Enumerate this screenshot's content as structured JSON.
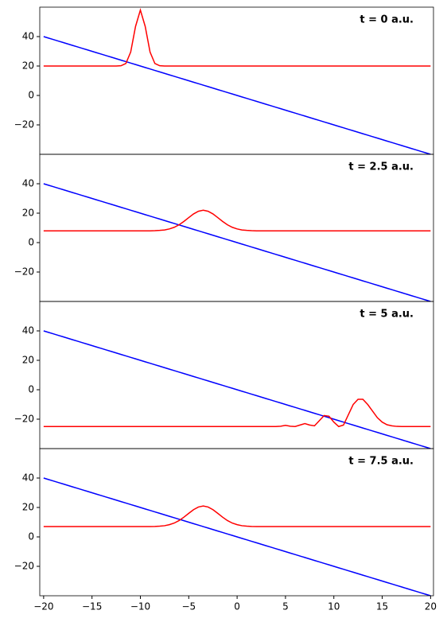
{
  "chart_data": [
    {
      "type": "line",
      "annotation": "t = 0 a.u.",
      "x": [
        -20,
        -19.5,
        -19,
        -18.5,
        -18,
        -17.5,
        -17,
        -16.5,
        -16,
        -15.5,
        -15,
        -14.5,
        -14,
        -13.5,
        -13,
        -12.5,
        -12,
        -11.5,
        -11,
        -10.5,
        -10,
        -9.5,
        -9,
        -8.5,
        -8,
        -7.5,
        -7,
        -6.5,
        -6,
        -5.5,
        -5,
        -4.5,
        -4,
        -3.5,
        -3,
        -2.5,
        -2,
        -1.5,
        -1,
        -0.5,
        0,
        0.5,
        1,
        1.5,
        2,
        2.5,
        3,
        3.5,
        4,
        4.5,
        5,
        5.5,
        6,
        6.5,
        7,
        7.5,
        8,
        8.5,
        9,
        9.5,
        10,
        10.5,
        11,
        11.5,
        12,
        12.5,
        13,
        13.5,
        14,
        14.5,
        15,
        15.5,
        16,
        16.5,
        17,
        17.5,
        18,
        18.5,
        19,
        19.5,
        20
      ],
      "series": [
        {
          "color": "#0000ff",
          "values": [
            40,
            39,
            38,
            37,
            36,
            35,
            34,
            33,
            32,
            31,
            30,
            29,
            28,
            27,
            26,
            25,
            24,
            23,
            22,
            21,
            20,
            19,
            18,
            17,
            16,
            15,
            14,
            13,
            12,
            11,
            10,
            9,
            8,
            7,
            6,
            5,
            4,
            3,
            2,
            1,
            0,
            -1,
            -2,
            -3,
            -4,
            -5,
            -6,
            -7,
            -8,
            -9,
            -10,
            -11,
            -12,
            -13,
            -14,
            -15,
            -16,
            -17,
            -18,
            -19,
            -20,
            -21,
            -22,
            -23,
            -24,
            -25,
            -26,
            -27,
            -28,
            -29,
            -30,
            -31,
            -32,
            -33,
            -34,
            -35,
            -36,
            -37,
            -38,
            -39,
            -40
          ]
        },
        {
          "color": "#ff0000",
          "values": [
            20,
            20,
            20,
            20,
            20,
            20,
            20,
            20,
            20,
            20,
            20,
            20,
            20,
            20,
            20,
            20,
            20.2,
            21.7,
            29.5,
            46.9,
            58,
            46.9,
            29.5,
            21.7,
            20.2,
            20,
            20,
            20,
            20,
            20,
            20,
            20,
            20,
            20,
            20,
            20,
            20,
            20,
            20,
            20,
            20,
            20,
            20,
            20,
            20,
            20,
            20,
            20,
            20,
            20,
            20,
            20,
            20,
            20,
            20,
            20,
            20,
            20,
            20,
            20,
            20,
            20,
            20,
            20,
            20,
            20,
            20,
            20,
            20,
            20,
            20,
            20,
            20,
            20,
            20,
            20,
            20,
            20,
            20,
            20,
            20
          ]
        }
      ],
      "xlim": [
        -20.4,
        20.3
      ],
      "ylim": [
        -40,
        60
      ],
      "yticks": [
        {
          "value": -20,
          "label": "−20"
        },
        0,
        20,
        40
      ]
    },
    {
      "type": "line",
      "annotation": "t = 2.5 a.u.",
      "x": [
        -20,
        -19.5,
        -19,
        -18.5,
        -18,
        -17.5,
        -17,
        -16.5,
        -16,
        -15.5,
        -15,
        -14.5,
        -14,
        -13.5,
        -13,
        -12.5,
        -12,
        -11.5,
        -11,
        -10.5,
        -10,
        -9.5,
        -9,
        -8.5,
        -8,
        -7.5,
        -7,
        -6.5,
        -6,
        -5.5,
        -5,
        -4.5,
        -4,
        -3.5,
        -3,
        -2.5,
        -2,
        -1.5,
        -1,
        -0.5,
        0,
        0.5,
        1,
        1.5,
        2,
        2.5,
        3,
        3.5,
        4,
        4.5,
        5,
        5.5,
        6,
        6.5,
        7,
        7.5,
        8,
        8.5,
        9,
        9.5,
        10,
        10.5,
        11,
        11.5,
        12,
        12.5,
        13,
        13.5,
        14,
        14.5,
        15,
        15.5,
        16,
        16.5,
        17,
        17.5,
        18,
        18.5,
        19,
        19.5,
        20
      ],
      "series": [
        {
          "color": "#0000ff",
          "values": [
            40,
            39,
            38,
            37,
            36,
            35,
            34,
            33,
            32,
            31,
            30,
            29,
            28,
            27,
            26,
            25,
            24,
            23,
            22,
            21,
            20,
            19,
            18,
            17,
            16,
            15,
            14,
            13,
            12,
            11,
            10,
            9,
            8,
            7,
            6,
            5,
            4,
            3,
            2,
            1,
            0,
            -1,
            -2,
            -3,
            -4,
            -5,
            -6,
            -7,
            -8,
            -9,
            -10,
            -11,
            -12,
            -13,
            -14,
            -15,
            -16,
            -17,
            -18,
            -19,
            -20,
            -21,
            -22,
            -23,
            -24,
            -25,
            -26,
            -27,
            -28,
            -29,
            -30,
            -31,
            -32,
            -33,
            -34,
            -35,
            -36,
            -37,
            -38,
            -39,
            -40
          ]
        },
        {
          "color": "#ff0000",
          "values": [
            8,
            8,
            8,
            8,
            8,
            8,
            8,
            8,
            8,
            8,
            8,
            8,
            8,
            8,
            8,
            8,
            8,
            8,
            8,
            8,
            8,
            8,
            8,
            8.1,
            8.3,
            8.6,
            9.3,
            10.4,
            12.1,
            14.4,
            17,
            19.5,
            21.3,
            22,
            21.3,
            19.5,
            17,
            14.4,
            12.1,
            10.4,
            9.3,
            8.6,
            8.3,
            8.1,
            8,
            8,
            8,
            8,
            8,
            8,
            8,
            8,
            8,
            8,
            8,
            8,
            8,
            8,
            8,
            8,
            8,
            8,
            8,
            8,
            8,
            8,
            8,
            8,
            8,
            8,
            8,
            8,
            8,
            8,
            8,
            8,
            8,
            8,
            8,
            8,
            8
          ]
        }
      ],
      "xlim": [
        -20.4,
        20.3
      ],
      "ylim": [
        -40,
        60
      ],
      "yticks": [
        {
          "value": -20,
          "label": "−20"
        },
        0,
        20,
        40
      ]
    },
    {
      "type": "line",
      "annotation": "t = 5 a.u.",
      "x": [
        -20,
        -19.5,
        -19,
        -18.5,
        -18,
        -17.5,
        -17,
        -16.5,
        -16,
        -15.5,
        -15,
        -14.5,
        -14,
        -13.5,
        -13,
        -12.5,
        -12,
        -11.5,
        -11,
        -10.5,
        -10,
        -9.5,
        -9,
        -8.5,
        -8,
        -7.5,
        -7,
        -6.5,
        -6,
        -5.5,
        -5,
        -4.5,
        -4,
        -3.5,
        -3,
        -2.5,
        -2,
        -1.5,
        -1,
        -0.5,
        0,
        0.5,
        1,
        1.5,
        2,
        2.5,
        3,
        3.5,
        4,
        4.5,
        5,
        5.5,
        6,
        6.5,
        7,
        7.5,
        8,
        8.5,
        9,
        9.5,
        10,
        10.5,
        11,
        11.5,
        12,
        12.5,
        13,
        13.5,
        14,
        14.5,
        15,
        15.5,
        16,
        16.5,
        17,
        17.5,
        18,
        18.5,
        19,
        19.5,
        20
      ],
      "series": [
        {
          "color": "#0000ff",
          "values": [
            40,
            39,
            38,
            37,
            36,
            35,
            34,
            33,
            32,
            31,
            30,
            29,
            28,
            27,
            26,
            25,
            24,
            23,
            22,
            21,
            20,
            19,
            18,
            17,
            16,
            15,
            14,
            13,
            12,
            11,
            10,
            9,
            8,
            7,
            6,
            5,
            4,
            3,
            2,
            1,
            0,
            -1,
            -2,
            -3,
            -4,
            -5,
            -6,
            -7,
            -8,
            -9,
            -10,
            -11,
            -12,
            -13,
            -14,
            -15,
            -16,
            -17,
            -18,
            -19,
            -20,
            -21,
            -22,
            -23,
            -24,
            -25,
            -26,
            -27,
            -28,
            -29,
            -30,
            -31,
            -32,
            -33,
            -34,
            -35,
            -36,
            -37,
            -38,
            -39,
            -40
          ]
        },
        {
          "color": "#ff0000",
          "values": [
            -25,
            -25,
            -25,
            -25,
            -25,
            -25,
            -25,
            -25,
            -25,
            -25,
            -25,
            -25,
            -25,
            -25,
            -25,
            -25,
            -25,
            -25,
            -25,
            -25,
            -25,
            -25,
            -25,
            -25,
            -25,
            -25,
            -25,
            -25,
            -25,
            -25,
            -25,
            -25,
            -25,
            -25,
            -25,
            -25,
            -25,
            -25,
            -25,
            -25,
            -25,
            -25,
            -25,
            -25,
            -25,
            -25,
            -25,
            -25,
            -25,
            -24.8,
            -24.2,
            -24.8,
            -25,
            -24,
            -23,
            -24,
            -24.5,
            -21,
            -17.5,
            -18,
            -22,
            -25,
            -24,
            -17,
            -10,
            -6.5,
            -6.5,
            -10,
            -14.5,
            -19,
            -22,
            -23.8,
            -24.5,
            -24.9,
            -25,
            -25,
            -25,
            -25,
            -25,
            -25,
            -25
          ]
        }
      ],
      "xlim": [
        -20.4,
        20.3
      ],
      "ylim": [
        -40,
        60
      ],
      "yticks": [
        {
          "value": -20,
          "label": "−20"
        },
        0,
        20,
        40
      ]
    },
    {
      "type": "line",
      "annotation": "t = 7.5 a.u.",
      "x": [
        -20,
        -19.5,
        -19,
        -18.5,
        -18,
        -17.5,
        -17,
        -16.5,
        -16,
        -15.5,
        -15,
        -14.5,
        -14,
        -13.5,
        -13,
        -12.5,
        -12,
        -11.5,
        -11,
        -10.5,
        -10,
        -9.5,
        -9,
        -8.5,
        -8,
        -7.5,
        -7,
        -6.5,
        -6,
        -5.5,
        -5,
        -4.5,
        -4,
        -3.5,
        -3,
        -2.5,
        -2,
        -1.5,
        -1,
        -0.5,
        0,
        0.5,
        1,
        1.5,
        2,
        2.5,
        3,
        3.5,
        4,
        4.5,
        5,
        5.5,
        6,
        6.5,
        7,
        7.5,
        8,
        8.5,
        9,
        9.5,
        10,
        10.5,
        11,
        11.5,
        12,
        12.5,
        13,
        13.5,
        14,
        14.5,
        15,
        15.5,
        16,
        16.5,
        17,
        17.5,
        18,
        18.5,
        19,
        19.5,
        20
      ],
      "series": [
        {
          "color": "#0000ff",
          "values": [
            40,
            39,
            38,
            37,
            36,
            35,
            34,
            33,
            32,
            31,
            30,
            29,
            28,
            27,
            26,
            25,
            24,
            23,
            22,
            21,
            20,
            19,
            18,
            17,
            16,
            15,
            14,
            13,
            12,
            11,
            10,
            9,
            8,
            7,
            6,
            5,
            4,
            3,
            2,
            1,
            0,
            -1,
            -2,
            -3,
            -4,
            -5,
            -6,
            -7,
            -8,
            -9,
            -10,
            -11,
            -12,
            -13,
            -14,
            -15,
            -16,
            -17,
            -18,
            -19,
            -20,
            -21,
            -22,
            -23,
            -24,
            -25,
            -26,
            -27,
            -28,
            -29,
            -30,
            -31,
            -32,
            -33,
            -34,
            -35,
            -36,
            -37,
            -38,
            -39,
            -40
          ]
        },
        {
          "color": "#ff0000",
          "values": [
            7,
            7,
            7,
            7,
            7,
            7,
            7,
            7,
            7,
            7,
            7,
            7,
            7,
            7,
            7,
            7,
            7,
            7,
            7,
            7,
            7,
            7,
            7,
            7.1,
            7.3,
            7.6,
            8.3,
            9.4,
            11.1,
            13.4,
            16,
            18.5,
            20.3,
            21,
            20.3,
            18.5,
            16,
            13.4,
            11.1,
            9.4,
            8.3,
            7.6,
            7.3,
            7.1,
            7,
            7,
            7,
            7,
            7,
            7,
            7,
            7,
            7,
            7,
            7,
            7,
            7,
            7,
            7,
            7,
            7,
            7,
            7,
            7,
            7,
            7,
            7,
            7,
            7,
            7,
            7,
            7,
            7,
            7,
            7,
            7,
            7,
            7,
            7,
            7,
            7
          ]
        }
      ],
      "xlim": [
        -20.4,
        20.3
      ],
      "ylim": [
        -40,
        60
      ],
      "yticks": [
        {
          "value": -20,
          "label": "−20"
        },
        0,
        20,
        40
      ],
      "xticks": [
        {
          "value": -20,
          "label": "−20"
        },
        {
          "value": -15,
          "label": "−15"
        },
        {
          "value": -10,
          "label": "−10"
        },
        {
          "value": -5,
          "label": "−5"
        },
        0,
        5,
        10,
        15,
        20
      ]
    }
  ]
}
